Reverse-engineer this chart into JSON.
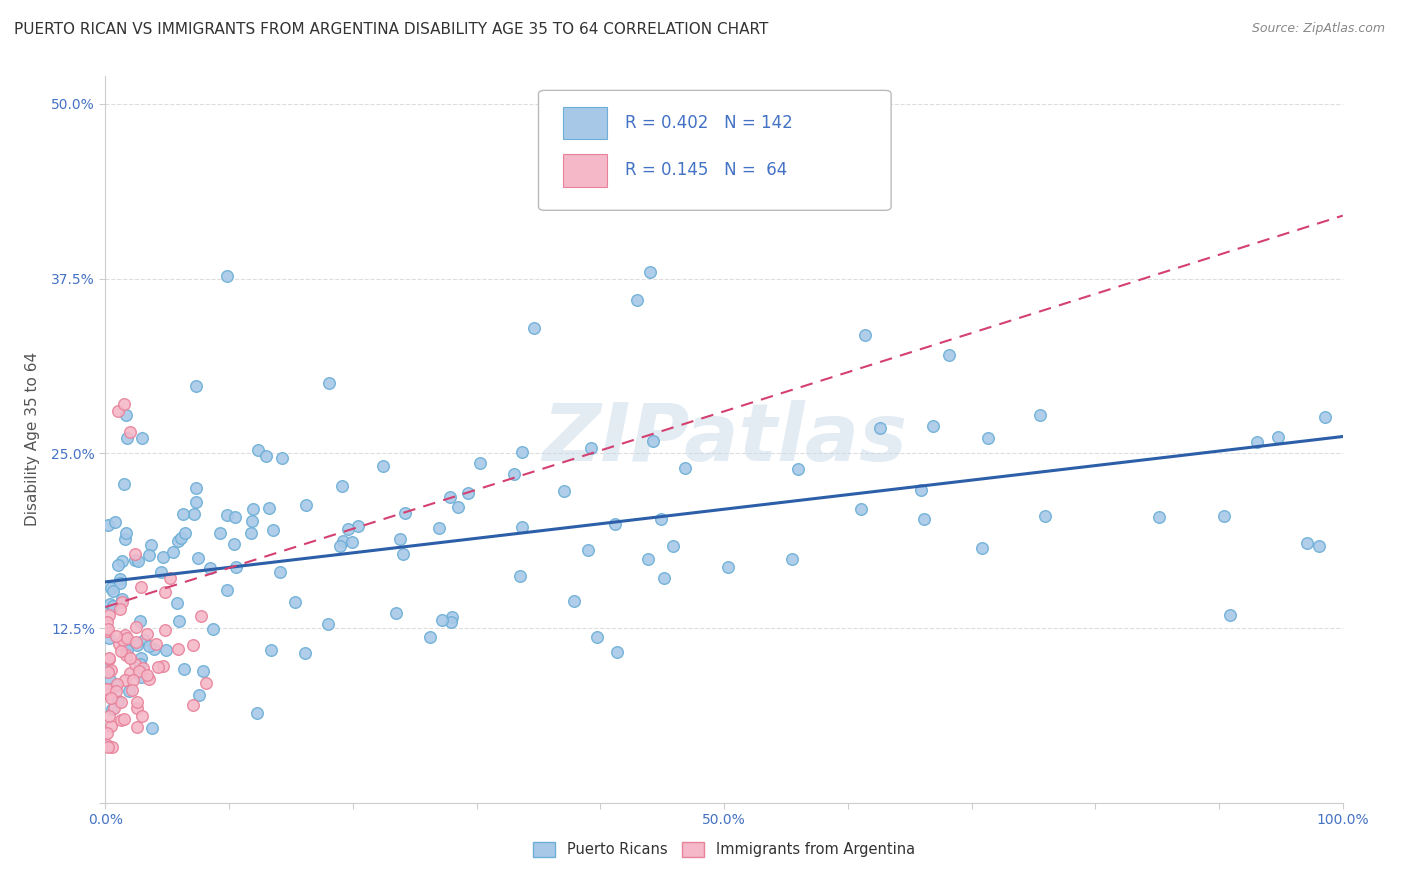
{
  "title": "PUERTO RICAN VS IMMIGRANTS FROM ARGENTINA DISABILITY AGE 35 TO 64 CORRELATION CHART",
  "source": "Source: ZipAtlas.com",
  "ylabel": "Disability Age 35 to 64",
  "watermark": "ZIPatlas",
  "legend_box": {
    "blue_r": "R = 0.402",
    "blue_n": "N = 142",
    "pink_r": "R = 0.145",
    "pink_n": "N =  64"
  },
  "legend_labels": [
    "Puerto Ricans",
    "Immigrants from Argentina"
  ],
  "blue_color": "#a8c8e8",
  "blue_edge_color": "#6baed6",
  "pink_color": "#f4b8c8",
  "pink_edge_color": "#e8829a",
  "blue_line_color": "#2c5fa8",
  "pink_line_color": "#d44070",
  "xlim": [
    0.0,
    1.0
  ],
  "ylim": [
    0.0,
    0.52
  ],
  "background_color": "#ffffff",
  "grid_color": "#dddddd",
  "title_fontsize": 11,
  "axis_label_fontsize": 11,
  "tick_fontsize": 10,
  "tick_color": "#4472c4",
  "blue_trend": [
    0.0,
    1.0,
    0.158,
    0.262
  ],
  "pink_trend": [
    0.0,
    1.0,
    0.14,
    0.42
  ]
}
